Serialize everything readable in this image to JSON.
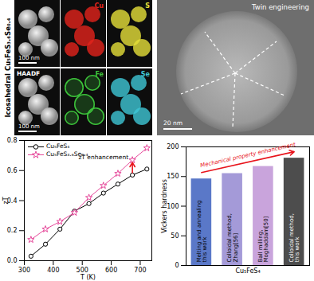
{
  "panels": {
    "title": "Icosahedral Cu₅FeS₃.₆Se₀.₄",
    "overview": {
      "scale_bar": "100 nm"
    },
    "maps": [
      {
        "label": "Cu",
        "color": "#e4231b"
      },
      {
        "label": "S",
        "color": "#e6e03a"
      },
      {
        "label": "HAADF",
        "color": "#ffffff",
        "scale_bar": "100 nm"
      },
      {
        "label": "Fe",
        "color": "#3cc13a"
      },
      {
        "label": "Se",
        "color": "#3fc7d6"
      }
    ],
    "tem": {
      "label": "Twin engineering",
      "scale_bar": "20 nm"
    }
  },
  "chart_data": [
    {
      "type": "line",
      "x_label": "T (K)",
      "y_label": "zT",
      "x": [
        323,
        373,
        423,
        473,
        523,
        573,
        623,
        673,
        723
      ],
      "series": [
        {
          "name": "Cu₅FeS₄",
          "color": "#000000",
          "marker": "circle",
          "values": [
            0.03,
            0.11,
            0.21,
            0.33,
            0.38,
            0.45,
            0.51,
            0.57,
            0.61
          ]
        },
        {
          "name": "Cu₅FeS₃.₆Se₀.₄",
          "color": "#e6489a",
          "marker": "star",
          "values": [
            0.14,
            0.21,
            0.26,
            0.32,
            0.42,
            0.5,
            0.58,
            0.67,
            0.75
          ]
        }
      ],
      "xlim": [
        300,
        740
      ],
      "xticks": [
        300,
        400,
        500,
        600,
        700
      ],
      "ylim": [
        0,
        0.8
      ],
      "yticks": [
        {
          "value": 0,
          "label": "0.0"
        },
        {
          "value": 0.2,
          "label": "0.2"
        },
        {
          "value": 0.4,
          "label": "0.4"
        },
        {
          "value": 0.6,
          "label": "0.6"
        },
        {
          "value": 0.8,
          "label": "0.8"
        }
      ],
      "legend": "upper left",
      "annotations": [
        "zT enhancement"
      ]
    },
    {
      "type": "bar",
      "x_label": "Cu₅FeS₄",
      "y_label": "Vickers hardness",
      "categories": [
        "Melting and annealing\nthis work",
        "Colloidal method,\nZhang[56]",
        "Ball milling,\nMoghaddam[50]",
        "Colloidal method,\nthis work"
      ],
      "values": [
        146,
        155,
        167,
        181
      ],
      "colors": [
        "#5a78c8",
        "#a49ad8",
        "#c9a4dc",
        "#4d4d4d"
      ],
      "ylim": [
        0,
        200
      ],
      "yticks": [
        0,
        50,
        100,
        150,
        200
      ],
      "tick_labels": "y",
      "annotations": [
        "Mechanical property enhancement"
      ]
    }
  ]
}
